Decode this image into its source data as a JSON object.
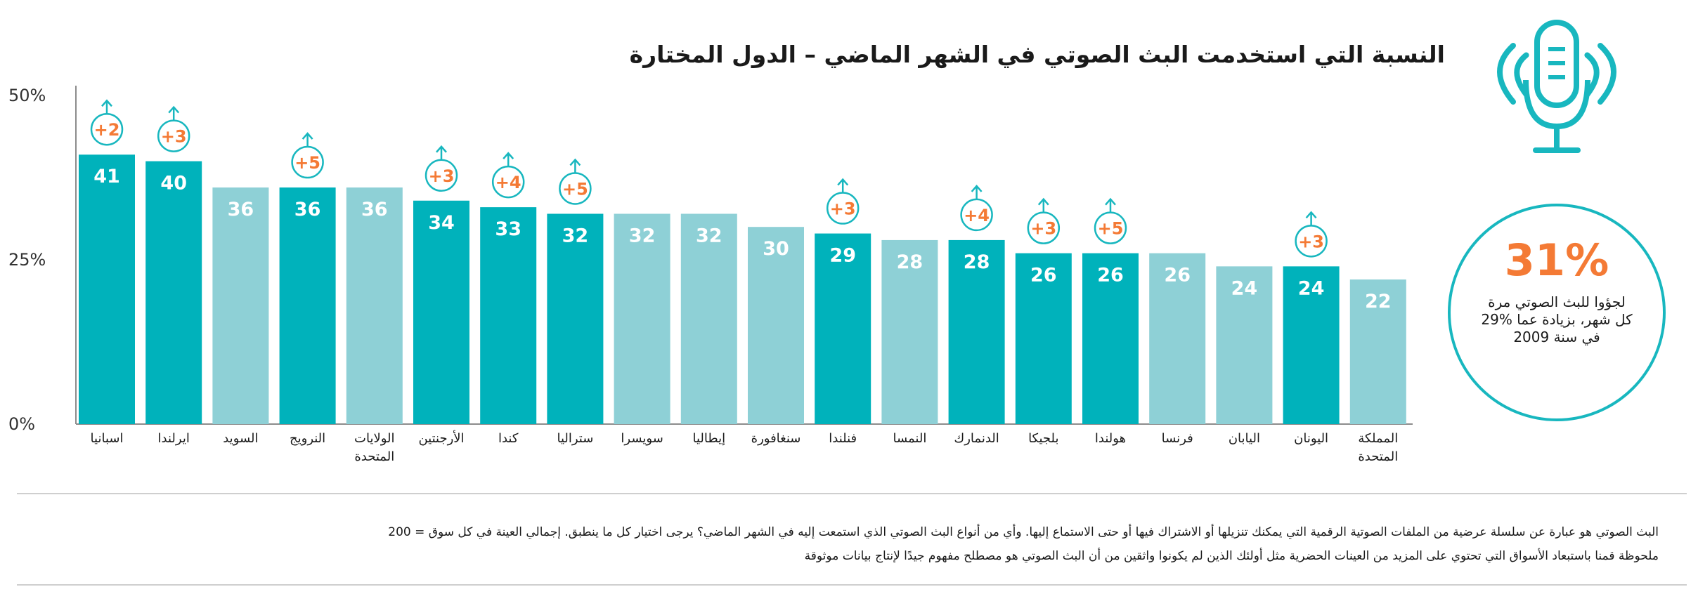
{
  "title": "النسبة التي استخدمت البث الصوتي في الشهر الماضي – الدول المختارة",
  "colors": {
    "dark": "#00b2bb",
    "light": "#8ed0d6",
    "accent": "#f47a35",
    "ring": "#18b7bf",
    "axis": "#8c8c8c"
  },
  "chart_data": {
    "type": "bar",
    "categories": [
      "اسبانيا",
      "ايرلندا",
      "السويد",
      "النرويج",
      "الولايات المتحدة",
      "الأرجنتين",
      "كندا",
      "ستراليا",
      "سويسرا",
      "إيطاليا",
      "سنغافورة",
      "فنلندا",
      "النمسا",
      "الدنمارك",
      "بلجيكا",
      "هولندا",
      "فرنسا",
      "اليابان",
      "اليونان",
      "المملكة المتحدة"
    ],
    "values": [
      41,
      40,
      36,
      36,
      36,
      34,
      33,
      32,
      32,
      32,
      30,
      29,
      28,
      28,
      26,
      26,
      26,
      24,
      24,
      22
    ],
    "highlight": [
      true,
      true,
      false,
      true,
      false,
      true,
      true,
      true,
      false,
      false,
      false,
      true,
      false,
      true,
      true,
      true,
      false,
      false,
      true,
      false
    ],
    "change_labels": [
      "+2",
      "+3",
      "",
      "+5",
      "",
      "+3",
      "+4",
      "+5",
      "",
      "",
      "",
      "+3",
      "",
      "+4",
      "+3",
      "+5",
      "",
      "",
      "+3",
      ""
    ],
    "yticks": [
      "0%",
      "25%",
      "50%"
    ],
    "ylim": [
      0,
      50
    ]
  },
  "callout": {
    "value": "31%",
    "line1": "لجؤوا للبث الصوتي مرة",
    "line2": "كل شهر، بزيادة عما %29",
    "line3": "في سنة 2009"
  },
  "notes": {
    "line1": "البث الصوتي هو عبارة عن سلسلة عرضية من الملفات الصوتية الرقمية التي يمكنك تنزيلها أو الاشتراك فيها أو حتى الاستماع إليها. وأي من أنواع البث الصوتي الذي استمعت إليه في الشهر الماضي؟ يرجى اختيار كل ما ينطبق. إجمالي العينة في كل سوق = 200",
    "line2": "ملحوظة قمنا باستبعاد الأسواق التي تحتوي على المزيد من العينات الحضرية مثل أولئك الذين لم يكونوا واثقين من أن البث الصوتي هو مصطلح مفهوم جيدًا لإنتاج بيانات موثوقة"
  }
}
